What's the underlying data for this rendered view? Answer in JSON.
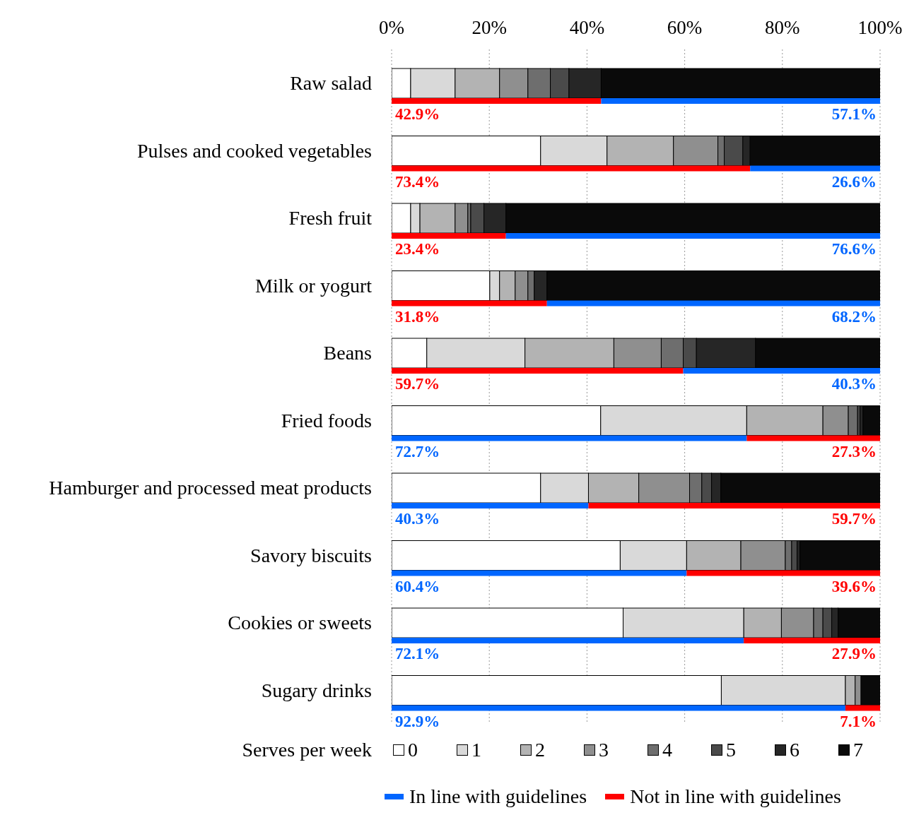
{
  "chart_data": [
    {
      "type": "bar",
      "orientation": "horizontal",
      "stacked": true,
      "grid": "x",
      "legend": "bottom",
      "legend_title": "Serves per week",
      "categories": [
        "Raw salad",
        "Pulses and cooked vegetables",
        "Fresh fruit",
        "Milk or yogurt",
        "Beans",
        "Fried foods",
        "Hamburger and processed meat products",
        "Savory biscuits",
        "Cookies or sweets",
        "Sugary drinks"
      ],
      "xlim": [
        0,
        100
      ],
      "xticks": [
        {
          "value": 0,
          "label": "0%"
        },
        {
          "value": 20,
          "label": "20%"
        },
        {
          "value": 40,
          "label": "40%"
        },
        {
          "value": 60,
          "label": "60%"
        },
        {
          "value": 80,
          "label": "80%"
        },
        {
          "value": 100,
          "label": "100%"
        }
      ],
      "series": [
        {
          "name": "0",
          "color": "#ffffff",
          "values": [
            3.9,
            30.5,
            3.9,
            20.1,
            7.2,
            42.8,
            30.5,
            46.8,
            47.4,
            67.5
          ]
        },
        {
          "name": "1",
          "color": "#d9d9d9",
          "values": [
            9.1,
            13.6,
            1.9,
            2.0,
            20.1,
            29.9,
            9.8,
            13.6,
            24.7,
            25.4
          ]
        },
        {
          "name": "2",
          "color": "#b3b3b3",
          "values": [
            9.1,
            13.6,
            7.2,
            3.2,
            18.2,
            15.6,
            10.3,
            11.1,
            7.7,
            2.0
          ]
        },
        {
          "name": "3",
          "color": "#8f8f8f",
          "values": [
            5.8,
            9.1,
            2.6,
            2.6,
            9.7,
            5.2,
            10.4,
            9.1,
            6.6,
            1.2
          ]
        },
        {
          "name": "4",
          "color": "#6e6e6e",
          "values": [
            4.6,
            1.3,
            0.6,
            1.3,
            4.5,
            1.9,
            2.5,
            1.3,
            1.9,
            0
          ]
        },
        {
          "name": "5",
          "color": "#4a4a4a",
          "values": [
            3.8,
            3.8,
            2.7,
            0,
            2.7,
            0.5,
            2.0,
            1.1,
            1.8,
            0
          ]
        },
        {
          "name": "6",
          "color": "#262626",
          "values": [
            6.6,
            1.5,
            4.5,
            2.6,
            12.1,
            0.6,
            1.9,
            0.6,
            1.3,
            0
          ]
        },
        {
          "name": "7",
          "color": "#0a0a0a",
          "values": [
            57.1,
            26.6,
            76.6,
            68.2,
            25.5,
            3.5,
            32.6,
            16.4,
            8.6,
            3.9
          ]
        }
      ]
    },
    {
      "type": "bar",
      "orientation": "horizontal",
      "stacked": true,
      "legend": "bottom",
      "xlim": [
        0,
        100
      ],
      "series": [
        {
          "name": "Not in line with guidelines",
          "color": "#ff0000",
          "values": [
            42.9,
            73.4,
            23.4,
            31.8,
            59.7,
            null,
            null,
            null,
            null,
            null
          ],
          "value_labels": [
            "42.9%",
            "73.4%",
            "23.4%",
            "31.8%",
            "59.7%",
            null,
            null,
            null,
            null,
            null
          ]
        },
        {
          "name": "In line with guidelines",
          "color": "#0066ff",
          "values": [
            57.1,
            26.6,
            76.6,
            68.2,
            40.3,
            72.7,
            40.3,
            60.4,
            72.1,
            92.9
          ],
          "value_labels": [
            "57.1%",
            "26.6%",
            "76.6%",
            "68.2%",
            "40.3%",
            "72.7%",
            "40.3%",
            "60.4%",
            "72.1%",
            "92.9%"
          ]
        },
        {
          "color": "#ff0000",
          "values": [
            null,
            null,
            null,
            null,
            null,
            27.3,
            59.7,
            39.6,
            27.9,
            7.1
          ],
          "value_labels": [
            null,
            null,
            null,
            null,
            null,
            "27.3%",
            "59.7%",
            "39.6%",
            "27.9%",
            "7.1%"
          ]
        }
      ]
    }
  ]
}
